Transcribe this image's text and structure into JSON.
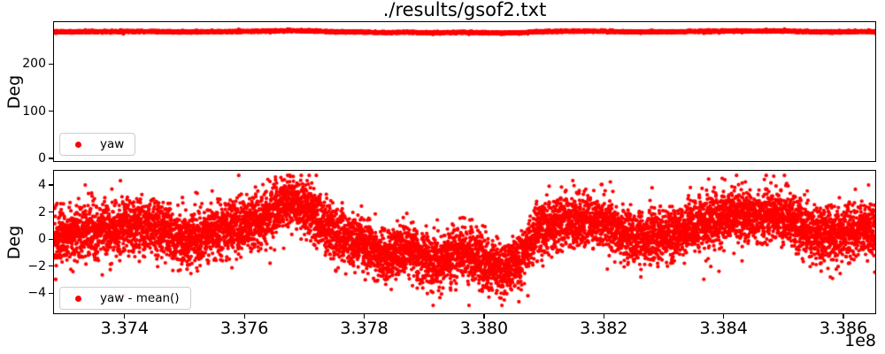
{
  "figure": {
    "title": "./results/gsof2.txt",
    "offset_text": "1e8",
    "background_color": "#ffffff",
    "text_color": "#000000",
    "spine_color": "#000000"
  },
  "chart_data": [
    {
      "type": "scatter",
      "ylabel": "Deg",
      "legend_label": "yaw",
      "legend_loc": "lower left",
      "series": [
        {
          "name": "yaw",
          "color": "#ff0000",
          "marker": "circle",
          "marker_radius": 2.1
        }
      ],
      "xlim": [
        3.372821,
        3.386531
      ],
      "ylim": [
        -5.6,
        289.0
      ],
      "x_unit_multiplier": "1e8",
      "grid": false,
      "yticks": [
        {
          "value": 0,
          "label": "0"
        },
        {
          "value": 100,
          "label": "100"
        },
        {
          "value": 200,
          "label": "200"
        }
      ],
      "xticks": [],
      "mean_offset": 268.2,
      "noise_std": 0.95,
      "tail_prob": 0.04,
      "tail_factor": 1.7,
      "n_points": 9000,
      "seed": 7,
      "clip": [
        254.0,
        284.0
      ],
      "trend_keyframes": [
        [
          3.3728,
          0.0
        ],
        [
          3.3734,
          0.7
        ],
        [
          3.374,
          0.8
        ],
        [
          3.3745,
          1.0
        ],
        [
          3.375,
          -0.3
        ],
        [
          3.3755,
          0.5
        ],
        [
          3.3759,
          0.9
        ],
        [
          3.3764,
          1.6
        ],
        [
          3.3767,
          2.9
        ],
        [
          3.377,
          2.3
        ],
        [
          3.3775,
          0.5
        ],
        [
          3.378,
          -0.4
        ],
        [
          3.3784,
          -1.2
        ],
        [
          3.3787,
          -0.6
        ],
        [
          3.3792,
          -1.9
        ],
        [
          3.3796,
          -0.8
        ],
        [
          3.38,
          -1.6
        ],
        [
          3.3803,
          -2.4
        ],
        [
          3.3806,
          -1.6
        ],
        [
          3.3809,
          0.7
        ],
        [
          3.3814,
          1.3
        ],
        [
          3.382,
          1.2
        ],
        [
          3.3824,
          0.2
        ],
        [
          3.3828,
          0.1
        ],
        [
          3.3833,
          0.5
        ],
        [
          3.3837,
          1.3
        ],
        [
          3.3841,
          1.8
        ],
        [
          3.3845,
          1.5
        ],
        [
          3.3849,
          2.0
        ],
        [
          3.3852,
          1.1
        ],
        [
          3.3856,
          0.2
        ],
        [
          3.386,
          0.3
        ],
        [
          3.3863,
          0.9
        ],
        [
          3.3866,
          0.3
        ]
      ]
    },
    {
      "type": "scatter",
      "ylabel": "Deg",
      "legend_label": "yaw - mean()",
      "legend_loc": "lower left",
      "series": [
        {
          "name": "yaw - mean()",
          "color": "#ff0000",
          "marker": "circle",
          "marker_radius": 2.1
        }
      ],
      "xlim": [
        3.372821,
        3.386531
      ],
      "ylim": [
        -5.48,
        5.04
      ],
      "x_unit_multiplier": "1e8",
      "grid": false,
      "yticks": [
        {
          "value": -4,
          "label": "−4"
        },
        {
          "value": -2,
          "label": "−2"
        },
        {
          "value": 0,
          "label": "0"
        },
        {
          "value": 2,
          "label": "2"
        },
        {
          "value": 4,
          "label": "4"
        }
      ],
      "xticks": [
        {
          "value": 3.374,
          "label": "3.374"
        },
        {
          "value": 3.376,
          "label": "3.376"
        },
        {
          "value": 3.378,
          "label": "3.378"
        },
        {
          "value": 3.38,
          "label": "3.380"
        },
        {
          "value": 3.382,
          "label": "3.382"
        },
        {
          "value": 3.384,
          "label": "3.384"
        },
        {
          "value": 3.386,
          "label": "3.386"
        }
      ],
      "mean_offset": 0.0,
      "noise_std": 0.95,
      "tail_prob": 0.04,
      "tail_factor": 1.7,
      "n_points": 9000,
      "seed": 7,
      "clip": [
        -4.9,
        4.7
      ],
      "trend_keyframes": [
        [
          3.3728,
          0.0
        ],
        [
          3.3734,
          0.7
        ],
        [
          3.374,
          0.8
        ],
        [
          3.3745,
          1.0
        ],
        [
          3.375,
          -0.3
        ],
        [
          3.3755,
          0.5
        ],
        [
          3.3759,
          0.9
        ],
        [
          3.3764,
          1.6
        ],
        [
          3.3767,
          2.9
        ],
        [
          3.377,
          2.3
        ],
        [
          3.3775,
          0.5
        ],
        [
          3.378,
          -0.4
        ],
        [
          3.3784,
          -1.2
        ],
        [
          3.3787,
          -0.6
        ],
        [
          3.3792,
          -1.9
        ],
        [
          3.3796,
          -0.8
        ],
        [
          3.38,
          -1.6
        ],
        [
          3.3803,
          -2.4
        ],
        [
          3.3806,
          -1.6
        ],
        [
          3.3809,
          0.7
        ],
        [
          3.3814,
          1.3
        ],
        [
          3.382,
          1.2
        ],
        [
          3.3824,
          0.2
        ],
        [
          3.3828,
          0.1
        ],
        [
          3.3833,
          0.5
        ],
        [
          3.3837,
          1.3
        ],
        [
          3.3841,
          1.8
        ],
        [
          3.3845,
          1.5
        ],
        [
          3.3849,
          2.0
        ],
        [
          3.3852,
          1.1
        ],
        [
          3.3856,
          0.2
        ],
        [
          3.386,
          0.3
        ],
        [
          3.3863,
          0.9
        ],
        [
          3.3866,
          0.3
        ]
      ]
    }
  ]
}
